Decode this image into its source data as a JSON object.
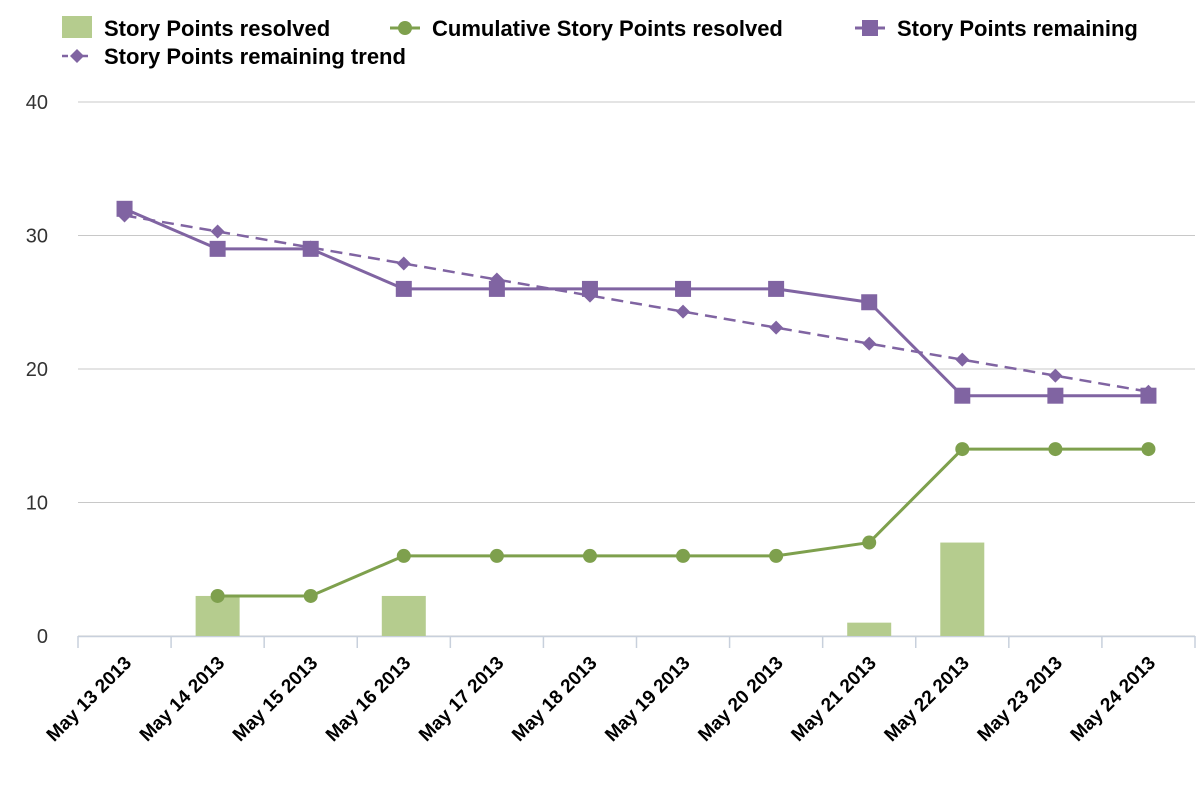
{
  "chart_data": {
    "type": "line",
    "categories": [
      "May 13 2013",
      "May 14 2013",
      "May 15 2013",
      "May 16 2013",
      "May 17 2013",
      "May 18 2013",
      "May 19 2013",
      "May 20 2013",
      "May 21 2013",
      "May 22 2013",
      "May 23 2013",
      "May 24 2013"
    ],
    "ylim": [
      0,
      40
    ],
    "yticks": [
      0,
      10,
      20,
      30,
      40
    ],
    "grid": true,
    "legend_position": "top",
    "series": [
      {
        "name": "Story Points resolved",
        "kind": "bar",
        "color": "#b5cc8e",
        "values": [
          null,
          3,
          null,
          3,
          null,
          null,
          null,
          null,
          1,
          7,
          null,
          null
        ]
      },
      {
        "name": "Cumulative Story Points resolved",
        "kind": "line",
        "marker": "circle",
        "color": "#7ea04d",
        "values": [
          null,
          3,
          3,
          6,
          6,
          6,
          6,
          6,
          7,
          14,
          14,
          14
        ]
      },
      {
        "name": "Story Points remaining",
        "kind": "line",
        "marker": "square",
        "color": "#8064a2",
        "values": [
          32,
          29,
          29,
          26,
          26,
          26,
          26,
          26,
          25,
          18,
          18,
          18
        ]
      },
      {
        "name": "Story Points remaining trend",
        "kind": "line",
        "dashed": true,
        "marker": "diamond",
        "color": "#8064a2",
        "values": [
          31.5,
          30.3,
          29.1,
          27.9,
          26.7,
          25.5,
          24.3,
          23.1,
          21.9,
          20.7,
          19.5,
          18.3
        ]
      }
    ]
  }
}
